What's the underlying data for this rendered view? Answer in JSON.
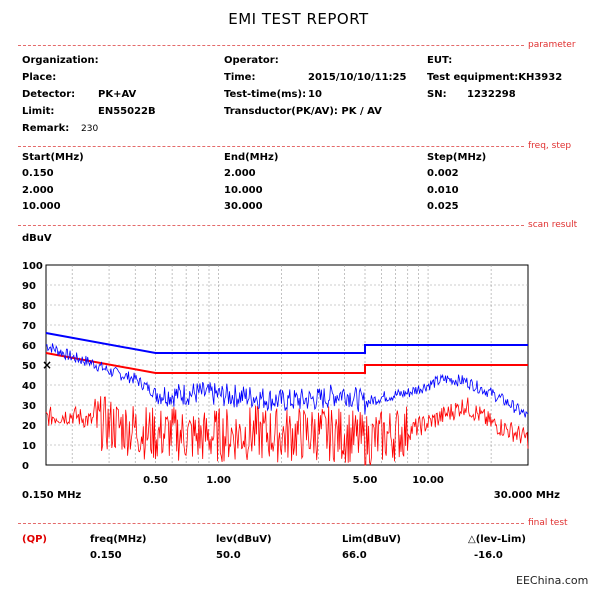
{
  "report": {
    "title": "EMI TEST REPORT"
  },
  "sections": {
    "parameter": "parameter",
    "freq_step": "freq, step",
    "scan_result": "scan result",
    "final_test": "final test"
  },
  "parameter": {
    "organization_label": "Organization:",
    "operator_label": "Operator:",
    "eut_label": "EUT:",
    "place_label": "Place:",
    "time_label": "Time:",
    "time_value": "2015/10/10/11:25",
    "test_equipment_label": "Test equipment:KH3932",
    "detector_label": "Detector:",
    "detector_value": "PK+AV",
    "test_time_label": "Test-time(ms):",
    "test_time_value": "10",
    "sn_label": "SN:",
    "sn_value": "1232298",
    "limit_label": "Limit:",
    "limit_value": "EN55022B",
    "transducer_label": "Transductor(PK/AV): PK  /  AV",
    "remark_label": "Remark:",
    "remark_value": "230"
  },
  "freq_step": {
    "headers": [
      "Start(MHz)",
      "End(MHz)",
      "Step(MHz)"
    ],
    "rows": [
      [
        "0.150",
        "2.000",
        "0.002"
      ],
      [
        "2.000",
        "10.000",
        "0.010"
      ],
      [
        "10.000",
        "30.000",
        "0.025"
      ]
    ]
  },
  "scan": {
    "ylabel": "dBuV"
  },
  "chart_data": {
    "type": "line",
    "x_scale": "log",
    "xlim": [
      0.15,
      30
    ],
    "ylim": [
      0,
      100
    ],
    "ylabel": "dBuV",
    "yticks": [
      "0",
      "10",
      "20",
      "30",
      "40",
      "50",
      "60",
      "70",
      "80",
      "90",
      "100"
    ],
    "xtick_labels": [
      "0.150 MHz",
      "0.50",
      "1.00",
      "5.00",
      "10.00",
      "30.000 MHz"
    ],
    "xtick_values": [
      0.15,
      0.5,
      1,
      5,
      10,
      30
    ],
    "grid": true,
    "series": [
      {
        "color": "#0000ff",
        "kind": "limit",
        "x": [
          0.15,
          0.5,
          5,
          5,
          30
        ],
        "y": [
          66,
          56,
          56,
          60,
          60
        ]
      },
      {
        "color": "#ff0000",
        "kind": "limit",
        "x": [
          0.15,
          0.5,
          5,
          5,
          30
        ],
        "y": [
          56,
          46,
          46,
          50,
          50
        ]
      },
      {
        "color": "#0000ff",
        "kind": "trace",
        "x": [
          0.15,
          0.2,
          0.25,
          0.3,
          0.4,
          0.5,
          0.6,
          0.8,
          1,
          1.5,
          2,
          3,
          4,
          5,
          6,
          8,
          10,
          12,
          15,
          20,
          25,
          30
        ],
        "y": [
          60,
          54,
          51,
          47,
          43,
          36,
          35,
          36,
          35,
          34,
          32,
          33,
          36,
          31,
          34,
          36,
          40,
          43,
          42,
          36,
          30,
          24
        ]
      },
      {
        "color": "#ff0000",
        "kind": "trace",
        "x": [
          0.15,
          0.2,
          0.25,
          0.3,
          0.4,
          0.5,
          0.6,
          0.8,
          1,
          1.5,
          2,
          3,
          4,
          5,
          6,
          8,
          10,
          12,
          15,
          20,
          25,
          30
        ],
        "y": [
          24,
          25,
          22,
          20,
          18,
          15,
          16,
          14,
          15,
          16,
          15,
          16,
          15,
          12,
          14,
          17,
          21,
          25,
          30,
          21,
          17,
          13
        ]
      }
    ],
    "markers": [
      {
        "x": 0.15,
        "y": 50,
        "symbol": "×"
      }
    ]
  },
  "final_test": {
    "qp": "(QP)",
    "headers": [
      "freq(MHz)",
      "lev(dBuV)",
      "Lim(dBuV)",
      "△(lev-Lim)"
    ],
    "values": [
      "0.150",
      "50.0",
      "66.0",
      "-16.0"
    ]
  },
  "watermark": "EEChina.com"
}
